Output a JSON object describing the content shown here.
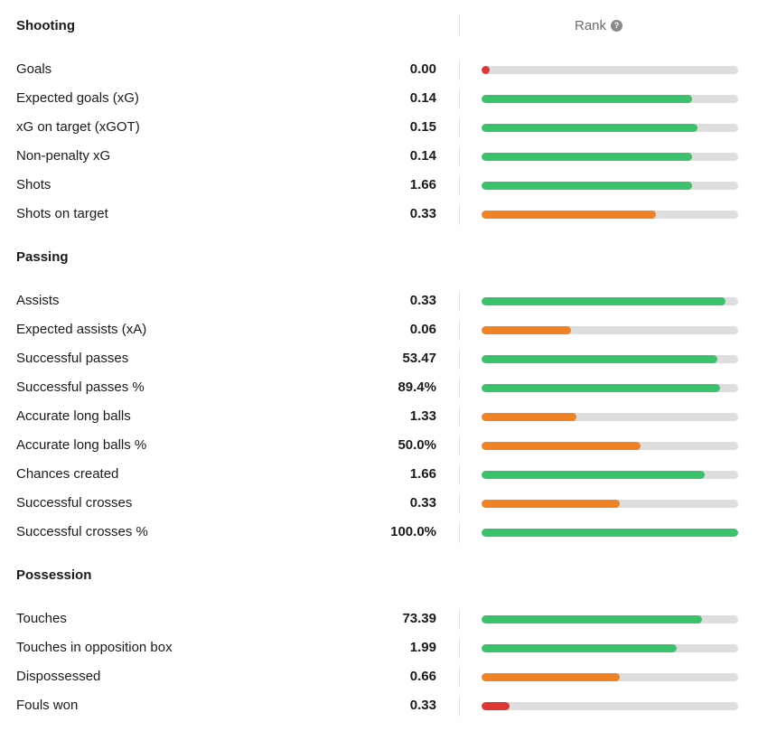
{
  "rank_label": "Rank",
  "help_icon": "help-icon",
  "colors": {
    "green": "#3cc26c",
    "orange": "#f08125",
    "red": "#e03535",
    "track": "#dedede"
  },
  "sections": [
    {
      "title": "Shooting",
      "show_rank": true,
      "rows": [
        {
          "label": "Goals",
          "value": "0.00",
          "percentile": 2,
          "color": "red"
        },
        {
          "label": "Expected goals (xG)",
          "value": "0.14",
          "percentile": 82,
          "color": "green"
        },
        {
          "label": "xG on target (xGOT)",
          "value": "0.15",
          "percentile": 84,
          "color": "green"
        },
        {
          "label": "Non-penalty xG",
          "value": "0.14",
          "percentile": 82,
          "color": "green"
        },
        {
          "label": "Shots",
          "value": "1.66",
          "percentile": 82,
          "color": "green"
        },
        {
          "label": "Shots on target",
          "value": "0.33",
          "percentile": 68,
          "color": "orange"
        }
      ]
    },
    {
      "title": "Passing",
      "show_rank": false,
      "rows": [
        {
          "label": "Assists",
          "value": "0.33",
          "percentile": 95,
          "color": "green"
        },
        {
          "label": "Expected assists (xA)",
          "value": "0.06",
          "percentile": 35,
          "color": "orange"
        },
        {
          "label": "Successful passes",
          "value": "53.47",
          "percentile": 92,
          "color": "green"
        },
        {
          "label": "Successful passes %",
          "value": "89.4%",
          "percentile": 93,
          "color": "green"
        },
        {
          "label": "Accurate long balls",
          "value": "1.33",
          "percentile": 37,
          "color": "orange"
        },
        {
          "label": "Accurate long balls %",
          "value": "50.0%",
          "percentile": 62,
          "color": "orange"
        },
        {
          "label": "Chances created",
          "value": "1.66",
          "percentile": 87,
          "color": "green"
        },
        {
          "label": "Successful crosses",
          "value": "0.33",
          "percentile": 54,
          "color": "orange"
        },
        {
          "label": "Successful crosses %",
          "value": "100.0%",
          "percentile": 100,
          "color": "green"
        }
      ]
    },
    {
      "title": "Possession",
      "show_rank": false,
      "rows": [
        {
          "label": "Touches",
          "value": "73.39",
          "percentile": 86,
          "color": "green"
        },
        {
          "label": "Touches in opposition box",
          "value": "1.99",
          "percentile": 76,
          "color": "green"
        },
        {
          "label": "Dispossessed",
          "value": "0.66",
          "percentile": 54,
          "color": "orange"
        },
        {
          "label": "Fouls won",
          "value": "0.33",
          "percentile": 11,
          "color": "red"
        }
      ]
    }
  ]
}
